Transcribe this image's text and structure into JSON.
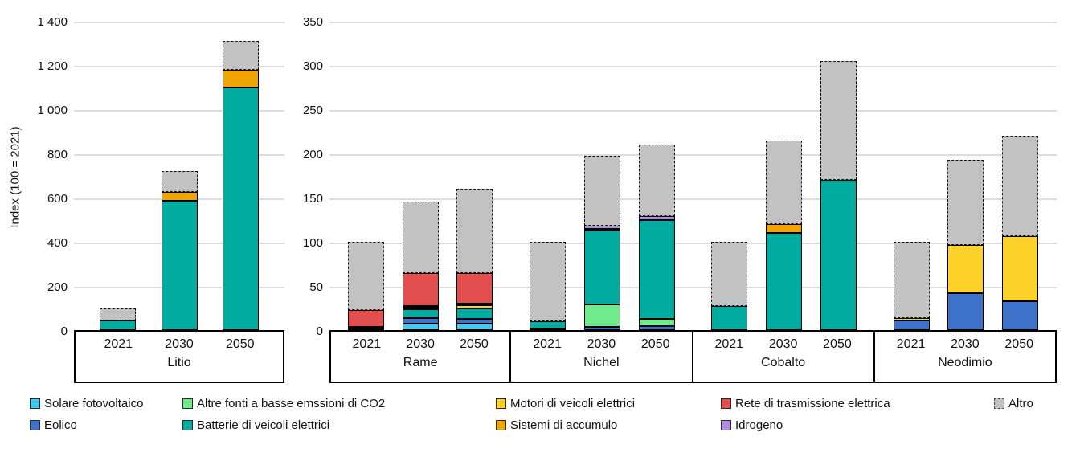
{
  "chart_data": {
    "type": "bar",
    "stacked": true,
    "grid": "horizontal-light",
    "legend_position": "bottom",
    "series": [
      {
        "key": "solare",
        "label": "Solare fotovoltaico",
        "color": "#45C9F0"
      },
      {
        "key": "eolico",
        "label": "Eolico",
        "color": "#3E72C8"
      },
      {
        "key": "altre_fonti",
        "label": "Altre fonti a basse emssioni di CO2",
        "color": "#6FEB8C"
      },
      {
        "key": "batterie",
        "label": "Batterie di veicoli elettrici",
        "color": "#00ABA0"
      },
      {
        "key": "motori",
        "label": "Motori di veicoli elettrici",
        "color": "#FDD32A"
      },
      {
        "key": "sistemi",
        "label": "Sistemi di accumulo",
        "color": "#F0A500"
      },
      {
        "key": "rete",
        "label": "Rete di trasmissione elettrica",
        "color": "#E34F4F"
      },
      {
        "key": "idrogeno",
        "label": "Idrogeno",
        "color": "#B18FE0"
      },
      {
        "key": "altro",
        "label": "Altro",
        "color": "#C2C2C2",
        "dashed": true
      }
    ],
    "legend": {
      "rows": [
        [
          "solare",
          "altre_fonti",
          "motori",
          "rete",
          "altro"
        ],
        [
          "eolico",
          "batterie",
          "sistemi",
          "idrogeno"
        ]
      ]
    },
    "panels": [
      {
        "ylabel": "Index (100 = 2021)",
        "ylim": [
          0,
          1400
        ],
        "yticks": [
          0,
          200,
          400,
          600,
          800,
          1000,
          1200,
          1400
        ],
        "ytick_labels": [
          "0",
          "200",
          "400",
          "600",
          "800",
          "1 000",
          "1 200",
          "1 400"
        ],
        "groups": [
          {
            "label": "Litio",
            "bars": [
              {
                "year": "2021",
                "segments": [
                  {
                    "series": "batterie",
                    "value": 45
                  },
                  {
                    "series": "altro",
                    "value": 55
                  }
                ]
              },
              {
                "year": "2030",
                "segments": [
                  {
                    "series": "batterie",
                    "value": 585
                  },
                  {
                    "series": "sistemi",
                    "value": 40
                  },
                  {
                    "series": "altro",
                    "value": 95
                  }
                ]
              },
              {
                "year": "2050",
                "segments": [
                  {
                    "series": "batterie",
                    "value": 1100
                  },
                  {
                    "series": "sistemi",
                    "value": 80
                  },
                  {
                    "series": "altro",
                    "value": 130
                  }
                ]
              }
            ]
          }
        ]
      },
      {
        "ylabel": "",
        "ylim": [
          0,
          350
        ],
        "yticks": [
          0,
          50,
          100,
          150,
          200,
          250,
          300,
          350
        ],
        "ytick_labels": [
          "0",
          "50",
          "100",
          "150",
          "200",
          "250",
          "300",
          "350"
        ],
        "groups": [
          {
            "label": "Rame",
            "bars": [
              {
                "year": "2021",
                "segments": [
                  {
                    "series": "solare",
                    "value": 1.5
                  },
                  {
                    "series": "eolico",
                    "value": 2
                  },
                  {
                    "series": "rete",
                    "value": 18.5
                  },
                  {
                    "series": "altro",
                    "value": 78
                  }
                ]
              },
              {
                "year": "2030",
                "segments": [
                  {
                    "series": "solare",
                    "value": 7.5
                  },
                  {
                    "series": "eolico",
                    "value": 6
                  },
                  {
                    "series": "batterie",
                    "value": 10
                  },
                  {
                    "series": "motori",
                    "value": 1
                  },
                  {
                    "series": "sistemi",
                    "value": 1.5
                  },
                  {
                    "series": "rete",
                    "value": 37
                  },
                  {
                    "series": "altro",
                    "value": 81
                  }
                ]
              },
              {
                "year": "2050",
                "segments": [
                  {
                    "series": "solare",
                    "value": 7.5
                  },
                  {
                    "series": "eolico",
                    "value": 5.5
                  },
                  {
                    "series": "batterie",
                    "value": 12
                  },
                  {
                    "series": "motori",
                    "value": 3
                  },
                  {
                    "series": "sistemi",
                    "value": 1.5
                  },
                  {
                    "series": "rete",
                    "value": 34.5
                  },
                  {
                    "series": "altro",
                    "value": 96
                  }
                ]
              }
            ]
          },
          {
            "label": "Nichel",
            "bars": [
              {
                "year": "2021",
                "segments": [
                  {
                    "series": "altre_fonti",
                    "value": 2
                  },
                  {
                    "series": "batterie",
                    "value": 8
                  },
                  {
                    "series": "altro",
                    "value": 90
                  }
                ]
              },
              {
                "year": "2030",
                "segments": [
                  {
                    "series": "eolico",
                    "value": 4
                  },
                  {
                    "series": "altre_fonti",
                    "value": 25
                  },
                  {
                    "series": "batterie",
                    "value": 84
                  },
                  {
                    "series": "sistemi",
                    "value": 2
                  },
                  {
                    "series": "idrogeno",
                    "value": 3.5
                  },
                  {
                    "series": "altro",
                    "value": 78.5
                  }
                ]
              },
              {
                "year": "2050",
                "segments": [
                  {
                    "series": "eolico",
                    "value": 5
                  },
                  {
                    "series": "altre_fonti",
                    "value": 8
                  },
                  {
                    "series": "batterie",
                    "value": 112
                  },
                  {
                    "series": "idrogeno",
                    "value": 4.5
                  },
                  {
                    "series": "altro",
                    "value": 80.5
                  }
                ]
              }
            ]
          },
          {
            "label": "Cobalto",
            "bars": [
              {
                "year": "2021",
                "segments": [
                  {
                    "series": "batterie",
                    "value": 27
                  },
                  {
                    "series": "altro",
                    "value": 73
                  }
                ]
              },
              {
                "year": "2030",
                "segments": [
                  {
                    "series": "batterie",
                    "value": 110
                  },
                  {
                    "series": "sistemi",
                    "value": 10
                  },
                  {
                    "series": "altro",
                    "value": 95
                  }
                ]
              },
              {
                "year": "2050",
                "segments": [
                  {
                    "series": "batterie",
                    "value": 170
                  },
                  {
                    "series": "altro",
                    "value": 135
                  }
                ]
              }
            ]
          },
          {
            "label": "Neodimio",
            "bars": [
              {
                "year": "2021",
                "segments": [
                  {
                    "series": "eolico",
                    "value": 11
                  },
                  {
                    "series": "motori",
                    "value": 3
                  },
                  {
                    "series": "altro",
                    "value": 86
                  }
                ]
              },
              {
                "year": "2030",
                "segments": [
                  {
                    "series": "eolico",
                    "value": 42
                  },
                  {
                    "series": "motori",
                    "value": 54
                  },
                  {
                    "series": "altro",
                    "value": 97
                  }
                ]
              },
              {
                "year": "2050",
                "segments": [
                  {
                    "series": "eolico",
                    "value": 33
                  },
                  {
                    "series": "motori",
                    "value": 73
                  },
                  {
                    "series": "altro",
                    "value": 114
                  }
                ]
              }
            ]
          }
        ]
      }
    ]
  }
}
